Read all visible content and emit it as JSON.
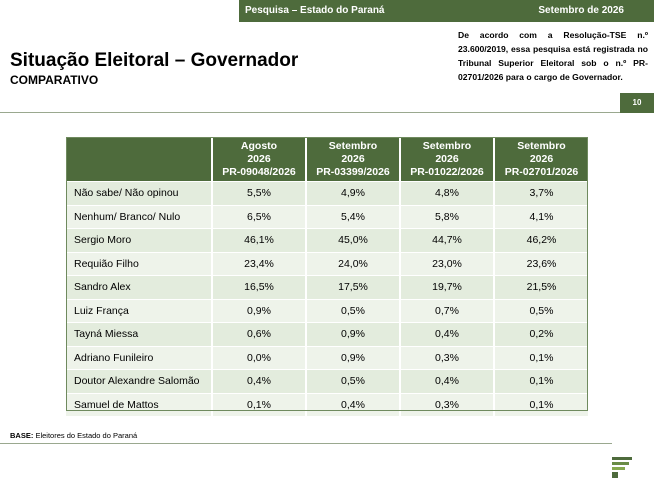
{
  "header": {
    "left_label": "Pesquisa – Estado do Paraná",
    "right_label": "Setembro de 2026"
  },
  "title": "Situação Eleitoral – Governador",
  "subtitle": "COMPARATIVO",
  "note": "De acordo com a Resolução-TSE n.º 23.600/2019, essa pesquisa está registrada no Tribunal Superior Eleitoral sob o n.º PR-02701/2026 para o cargo de Governador.",
  "page_number": "10",
  "table": {
    "columns": [
      [
        "Agosto",
        "2026",
        "PR-09048/2026"
      ],
      [
        "Setembro",
        "2026",
        "PR-03399/2026"
      ],
      [
        "Setembro",
        "2026",
        "PR-01022/2026"
      ],
      [
        "Setembro",
        "2026",
        "PR-02701/2026"
      ]
    ],
    "rows": [
      {
        "name": "Não sabe/ Não opinou",
        "values": [
          "5,5%",
          "4,9%",
          "4,8%",
          "3,7%"
        ]
      },
      {
        "name": "Nenhum/ Branco/ Nulo",
        "values": [
          "6,5%",
          "5,4%",
          "5,8%",
          "4,1%"
        ]
      },
      {
        "name": "Sergio Moro",
        "values": [
          "46,1%",
          "45,0%",
          "44,7%",
          "46,2%"
        ]
      },
      {
        "name": "Requião Filho",
        "values": [
          "23,4%",
          "24,0%",
          "23,0%",
          "23,6%"
        ]
      },
      {
        "name": "Sandro Alex",
        "values": [
          "16,5%",
          "17,5%",
          "19,7%",
          "21,5%"
        ]
      },
      {
        "name": "Luiz França",
        "values": [
          "0,9%",
          "0,5%",
          "0,7%",
          "0,5%"
        ]
      },
      {
        "name": "Tayná Miessa",
        "values": [
          "0,6%",
          "0,9%",
          "0,4%",
          "0,2%"
        ]
      },
      {
        "name": "Adriano Funileiro",
        "values": [
          "0,0%",
          "0,9%",
          "0,3%",
          "0,1%"
        ]
      },
      {
        "name": "Doutor Alexandre Salomão",
        "values": [
          "0,4%",
          "0,5%",
          "0,4%",
          "0,1%"
        ]
      },
      {
        "name": "Samuel de Mattos",
        "values": [
          "0,1%",
          "0,4%",
          "0,3%",
          "0,1%"
        ]
      }
    ]
  },
  "base": {
    "label": "BASE:",
    "text": "Eleitores do Estado do Paraná"
  },
  "colors": {
    "brand_green": "#4e6b3c",
    "row_odd": "#e3ecdd",
    "row_even": "#eef3ea"
  },
  "logo_icon": "institute-logo-icon"
}
